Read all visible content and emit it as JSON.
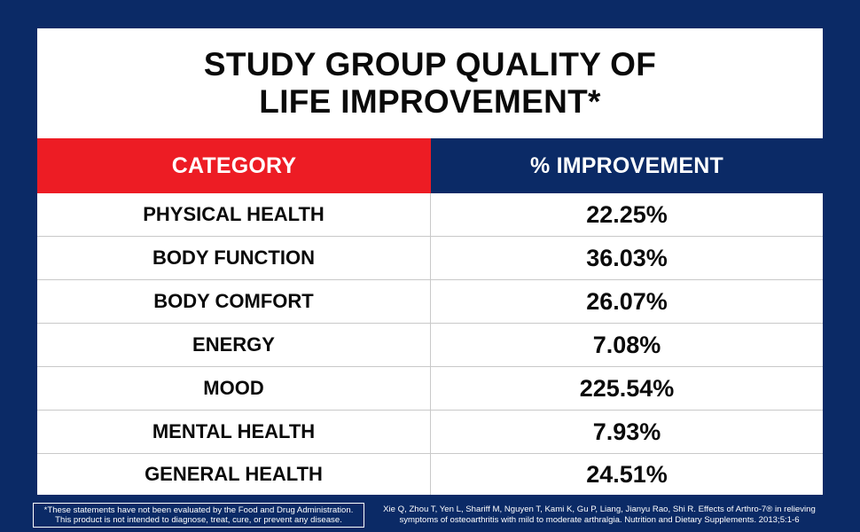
{
  "title": {
    "line1": "STUDY GROUP QUALITY OF",
    "line2": "LIFE IMPROVEMENT*"
  },
  "colors": {
    "background": "#0b2a66",
    "header_category": "#ed1c24",
    "header_improvement": "#0b2a66"
  },
  "chart_data": {
    "type": "table",
    "title": "STUDY GROUP QUALITY OF LIFE IMPROVEMENT*",
    "columns": [
      "CATEGORY",
      "% IMPROVEMENT"
    ],
    "rows": [
      {
        "category": "PHYSICAL HEALTH",
        "value": "22.25%"
      },
      {
        "category": "BODY FUNCTION",
        "value": "36.03%"
      },
      {
        "category": "BODY COMFORT",
        "value": "26.07%"
      },
      {
        "category": "ENERGY",
        "value": "7.08%"
      },
      {
        "category": "MOOD",
        "value": "225.54%"
      },
      {
        "category": "MENTAL HEALTH",
        "value": "7.93%"
      },
      {
        "category": "GENERAL HEALTH",
        "value": "24.51%"
      }
    ]
  },
  "footer": {
    "disclaimer_line1": "*These statements have not been evaluated by the Food and Drug Administration.",
    "disclaimer_line2": "This product is not intended to diagnose, treat, cure, or prevent any disease.",
    "citation_line1": "Xie Q, Zhou T, Yen L, Shariff M, Nguyen T, Kami K, Gu P, Liang, Jianyu Rao, Shi R. Effects of Arthro-7® in relieving",
    "citation_line2": "symptoms of osteoarthritis with mild to moderate arthralgia. Nutrition and Dietary Supplements. 2013;5:1-6"
  }
}
